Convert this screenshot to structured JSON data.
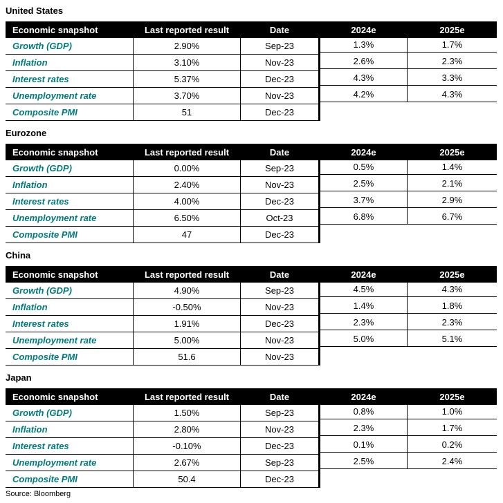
{
  "colors": {
    "header_bg": "#000000",
    "header_text": "#ffffff",
    "label_teal": "#007a7d",
    "border": "#000000",
    "background": "#ffffff"
  },
  "columns": {
    "snapshot": "Economic snapshot",
    "last": "Last reported result",
    "date": "Date",
    "y2024": "2024e",
    "y2025": "2025e"
  },
  "source": "Source: Bloomberg",
  "tables": [
    {
      "country": "United States",
      "rows": [
        {
          "label": "Growth (GDP)",
          "last": "2.90%",
          "date": "Sep-23",
          "e2024": "1.3%",
          "e2025": "1.7%"
        },
        {
          "label": "Inflation",
          "last": "3.10%",
          "date": "Nov-23",
          "e2024": "2.6%",
          "e2025": "2.3%"
        },
        {
          "label": "Interest rates",
          "last": "5.37%",
          "date": "Dec-23",
          "e2024": "4.3%",
          "e2025": "3.3%"
        },
        {
          "label": "Unemployment rate",
          "last": "3.70%",
          "date": "Nov-23",
          "e2024": "4.2%",
          "e2025": "4.3%"
        },
        {
          "label": "Composite PMI",
          "last": "51",
          "date": "Dec-23",
          "e2024": null,
          "e2025": null
        }
      ]
    },
    {
      "country": "Eurozone",
      "rows": [
        {
          "label": "Growth (GDP)",
          "last": "0.00%",
          "date": "Sep-23",
          "e2024": "0.5%",
          "e2025": "1.4%"
        },
        {
          "label": "Inflation",
          "last": "2.40%",
          "date": "Nov-23",
          "e2024": "2.5%",
          "e2025": "2.1%"
        },
        {
          "label": "Interest rates",
          "last": "4.00%",
          "date": "Dec-23",
          "e2024": "3.7%",
          "e2025": "2.9%"
        },
        {
          "label": "Unemployment rate",
          "last": "6.50%",
          "date": "Oct-23",
          "e2024": "6.8%",
          "e2025": "6.7%"
        },
        {
          "label": "Composite PMI",
          "last": "47",
          "date": "Dec-23",
          "e2024": null,
          "e2025": null
        }
      ]
    },
    {
      "country": "China",
      "rows": [
        {
          "label": "Growth (GDP)",
          "last": "4.90%",
          "date": "Sep-23",
          "e2024": "4.5%",
          "e2025": "4.3%"
        },
        {
          "label": "Inflation",
          "last": "-0.50%",
          "date": "Nov-23",
          "e2024": "1.4%",
          "e2025": "1.8%"
        },
        {
          "label": "Interest rates",
          "last": "1.91%",
          "date": "Dec-23",
          "e2024": "2.3%",
          "e2025": "2.3%"
        },
        {
          "label": "Unemployment rate",
          "last": "5.00%",
          "date": "Nov-23",
          "e2024": "5.0%",
          "e2025": "5.1%"
        },
        {
          "label": "Composite PMI",
          "last": "51.6",
          "date": "Nov-23",
          "e2024": null,
          "e2025": null
        }
      ]
    },
    {
      "country": "Japan",
      "rows": [
        {
          "label": "Growth (GDP)",
          "last": "1.50%",
          "date": "Sep-23",
          "e2024": "0.8%",
          "e2025": "1.0%"
        },
        {
          "label": "Inflation",
          "last": "2.80%",
          "date": "Nov-23",
          "e2024": "2.3%",
          "e2025": "1.7%"
        },
        {
          "label": "Interest rates",
          "last": "-0.10%",
          "date": "Dec-23",
          "e2024": "0.1%",
          "e2025": "0.2%"
        },
        {
          "label": "Unemployment rate",
          "last": "2.67%",
          "date": "Sep-23",
          "e2024": "2.5%",
          "e2025": "2.4%"
        },
        {
          "label": "Composite PMI",
          "last": "50.4",
          "date": "Dec-23",
          "e2024": null,
          "e2025": null
        }
      ]
    }
  ]
}
